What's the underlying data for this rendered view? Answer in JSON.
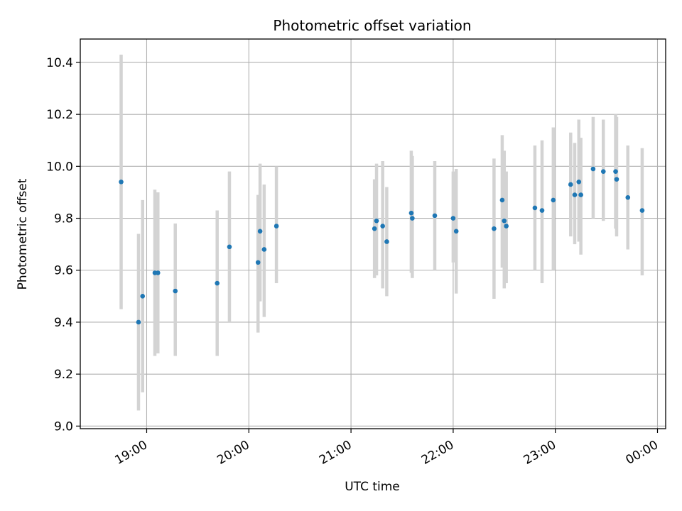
{
  "chart_data": {
    "type": "scatter",
    "title": "Photometric offset variation",
    "xlabel": "UTC time",
    "ylabel": "Photometric offset",
    "grid": true,
    "xlim_hours": [
      18.35,
      24.08
    ],
    "ylim": [
      8.99,
      10.49
    ],
    "xticks": [
      {
        "hour": 19,
        "label": "19:00"
      },
      {
        "hour": 20,
        "label": "20:00"
      },
      {
        "hour": 21,
        "label": "21:00"
      },
      {
        "hour": 22,
        "label": "22:00"
      },
      {
        "hour": 23,
        "label": "23:00"
      },
      {
        "hour": 24,
        "label": "00:00"
      }
    ],
    "yticks": [
      {
        "value": 9.0,
        "label": "9.0"
      },
      {
        "value": 9.2,
        "label": "9.2"
      },
      {
        "value": 9.4,
        "label": "9.4"
      },
      {
        "value": 9.6,
        "label": "9.6"
      },
      {
        "value": 9.8,
        "label": "9.8"
      },
      {
        "value": 10.0,
        "label": "10.0"
      },
      {
        "value": 10.2,
        "label": "10.2"
      },
      {
        "value": 10.4,
        "label": "10.4"
      }
    ],
    "marker_color": "#1f77b4",
    "errorbar_color": "#d3d3d3",
    "points": [
      {
        "hour": 18.75,
        "y": 9.94,
        "lo": 9.45,
        "hi": 10.43
      },
      {
        "hour": 18.92,
        "y": 9.4,
        "lo": 9.06,
        "hi": 9.74
      },
      {
        "hour": 18.96,
        "y": 9.5,
        "lo": 9.13,
        "hi": 9.87
      },
      {
        "hour": 19.08,
        "y": 9.59,
        "lo": 9.27,
        "hi": 9.91
      },
      {
        "hour": 19.11,
        "y": 9.59,
        "lo": 9.28,
        "hi": 9.9
      },
      {
        "hour": 19.28,
        "y": 9.52,
        "lo": 9.27,
        "hi": 9.78
      },
      {
        "hour": 19.69,
        "y": 9.55,
        "lo": 9.27,
        "hi": 9.83
      },
      {
        "hour": 19.81,
        "y": 9.69,
        "lo": 9.4,
        "hi": 9.98
      },
      {
        "hour": 20.09,
        "y": 9.63,
        "lo": 9.36,
        "hi": 9.89
      },
      {
        "hour": 20.11,
        "y": 9.75,
        "lo": 9.48,
        "hi": 10.01
      },
      {
        "hour": 20.15,
        "y": 9.68,
        "lo": 9.42,
        "hi": 9.93
      },
      {
        "hour": 20.27,
        "y": 9.77,
        "lo": 9.55,
        "hi": 10.0
      },
      {
        "hour": 21.23,
        "y": 9.76,
        "lo": 9.57,
        "hi": 9.95
      },
      {
        "hour": 21.25,
        "y": 9.79,
        "lo": 9.58,
        "hi": 10.01
      },
      {
        "hour": 21.31,
        "y": 9.77,
        "lo": 9.53,
        "hi": 10.02
      },
      {
        "hour": 21.35,
        "y": 9.71,
        "lo": 9.5,
        "hi": 9.92
      },
      {
        "hour": 21.59,
        "y": 9.82,
        "lo": 9.59,
        "hi": 10.06
      },
      {
        "hour": 21.6,
        "y": 9.8,
        "lo": 9.57,
        "hi": 10.04
      },
      {
        "hour": 21.82,
        "y": 9.81,
        "lo": 9.6,
        "hi": 10.02
      },
      {
        "hour": 22.0,
        "y": 9.8,
        "lo": 9.63,
        "hi": 9.98
      },
      {
        "hour": 22.03,
        "y": 9.75,
        "lo": 9.51,
        "hi": 9.99
      },
      {
        "hour": 22.4,
        "y": 9.76,
        "lo": 9.49,
        "hi": 10.03
      },
      {
        "hour": 22.48,
        "y": 9.87,
        "lo": 9.61,
        "hi": 10.12
      },
      {
        "hour": 22.5,
        "y": 9.79,
        "lo": 9.53,
        "hi": 10.06
      },
      {
        "hour": 22.52,
        "y": 9.77,
        "lo": 9.55,
        "hi": 9.98
      },
      {
        "hour": 22.8,
        "y": 9.84,
        "lo": 9.6,
        "hi": 10.08
      },
      {
        "hour": 22.87,
        "y": 9.83,
        "lo": 9.55,
        "hi": 10.1
      },
      {
        "hour": 22.98,
        "y": 9.87,
        "lo": 9.6,
        "hi": 10.15
      },
      {
        "hour": 23.15,
        "y": 9.93,
        "lo": 9.73,
        "hi": 10.13
      },
      {
        "hour": 23.19,
        "y": 9.89,
        "lo": 9.7,
        "hi": 10.09
      },
      {
        "hour": 23.23,
        "y": 9.94,
        "lo": 9.71,
        "hi": 10.18
      },
      {
        "hour": 23.25,
        "y": 9.89,
        "lo": 9.66,
        "hi": 10.11
      },
      {
        "hour": 23.37,
        "y": 9.99,
        "lo": 9.8,
        "hi": 10.19
      },
      {
        "hour": 23.47,
        "y": 9.98,
        "lo": 9.79,
        "hi": 10.18
      },
      {
        "hour": 23.59,
        "y": 9.98,
        "lo": 9.76,
        "hi": 10.2
      },
      {
        "hour": 23.6,
        "y": 9.95,
        "lo": 9.73,
        "hi": 10.19
      },
      {
        "hour": 23.71,
        "y": 9.88,
        "lo": 9.68,
        "hi": 10.08
      },
      {
        "hour": 23.85,
        "y": 9.83,
        "lo": 9.58,
        "hi": 10.07
      }
    ]
  }
}
